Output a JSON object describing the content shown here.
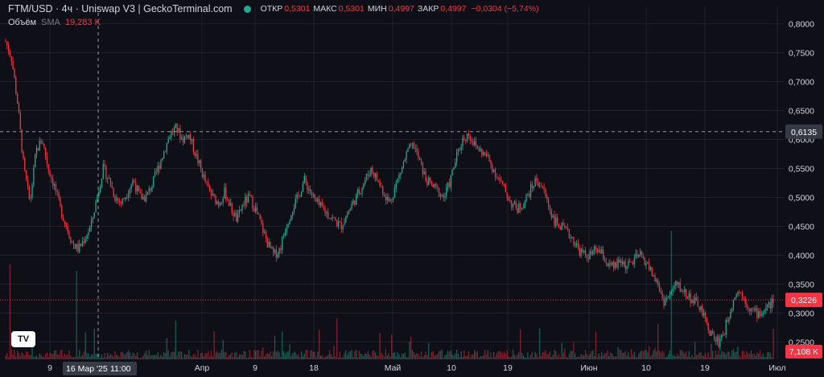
{
  "header": {
    "title": "FTM/USD · 4ч · Uniswap V3 | GeckoTerminal.com",
    "open_label": "ОТКР",
    "open": "0,5301",
    "high_label": "МАКС",
    "high": "0,5301",
    "low_label": "МИН",
    "low": "0,4997",
    "close_label": "ЗАКР",
    "close": "0,4997",
    "change": "−0,0304 (−5,74%)",
    "status_color": "#22ab94"
  },
  "volume_legend": {
    "label": "Объём",
    "type": "SMA",
    "value": "19,283 K"
  },
  "logo": {
    "text": "TV",
    "icon": "tradingview-logo-icon"
  },
  "colors": {
    "up": "#22ab94",
    "down": "#f23645",
    "background": "#0f0f17",
    "grid": "#1e222d"
  },
  "chart_data": {
    "type": "candlestick",
    "y_ticks": [
      "0,8000",
      "0,7500",
      "0,7000",
      "0,6500",
      "0,6000",
      "0,5500",
      "0,5000",
      "0,4500",
      "0,4000",
      "0,3500",
      "0,3000",
      "0,2500"
    ],
    "y_tick_values": [
      0.8,
      0.75,
      0.7,
      0.65,
      0.6,
      0.55,
      0.5,
      0.45,
      0.4,
      0.35,
      0.3,
      0.25
    ],
    "ylim": [
      0.22,
      0.83
    ],
    "x_ticks": [
      "9",
      "16 Мар '25",
      "11:00",
      "Апр",
      "9",
      "18",
      "Май",
      "10",
      "19",
      "Июн",
      "10",
      "19",
      "Июл"
    ],
    "crosshair": {
      "price": 0.6135,
      "price_label": "0,6135",
      "date_label": "16 Мар '25",
      "time_label": "11:00"
    },
    "last_price": {
      "value": 0.3226,
      "label": "0,3226"
    },
    "volume_last": "7,108 K",
    "price_path": [
      [
        0,
        0.77
      ],
      [
        1,
        0.74
      ],
      [
        2,
        0.66
      ],
      [
        3,
        0.55
      ],
      [
        4,
        0.49
      ],
      [
        5,
        0.58
      ],
      [
        6,
        0.6
      ],
      [
        7,
        0.55
      ],
      [
        8,
        0.52
      ],
      [
        9,
        0.48
      ],
      [
        10,
        0.45
      ],
      [
        11,
        0.42
      ],
      [
        12,
        0.41
      ],
      [
        13,
        0.43
      ],
      [
        14,
        0.45
      ],
      [
        15,
        0.5
      ],
      [
        16,
        0.55
      ],
      [
        17,
        0.53
      ],
      [
        18,
        0.5
      ],
      [
        19,
        0.49
      ],
      [
        20,
        0.51
      ],
      [
        21,
        0.53
      ],
      [
        22,
        0.5
      ],
      [
        23,
        0.5
      ],
      [
        24,
        0.52
      ],
      [
        25,
        0.55
      ],
      [
        26,
        0.58
      ],
      [
        27,
        0.61
      ],
      [
        28,
        0.62
      ],
      [
        29,
        0.6
      ],
      [
        30,
        0.61
      ],
      [
        31,
        0.58
      ],
      [
        32,
        0.55
      ],
      [
        33,
        0.52
      ],
      [
        34,
        0.5
      ],
      [
        35,
        0.49
      ],
      [
        36,
        0.51
      ],
      [
        37,
        0.48
      ],
      [
        38,
        0.46
      ],
      [
        39,
        0.49
      ],
      [
        40,
        0.5
      ],
      [
        41,
        0.48
      ],
      [
        42,
        0.45
      ],
      [
        43,
        0.42
      ],
      [
        44,
        0.4
      ],
      [
        45,
        0.41
      ],
      [
        46,
        0.45
      ],
      [
        47,
        0.48
      ],
      [
        48,
        0.5
      ],
      [
        49,
        0.53
      ],
      [
        50,
        0.51
      ],
      [
        51,
        0.49
      ],
      [
        52,
        0.48
      ],
      [
        53,
        0.47
      ],
      [
        54,
        0.46
      ],
      [
        55,
        0.45
      ],
      [
        56,
        0.47
      ],
      [
        57,
        0.49
      ],
      [
        58,
        0.51
      ],
      [
        59,
        0.53
      ],
      [
        60,
        0.55
      ],
      [
        61,
        0.53
      ],
      [
        62,
        0.51
      ],
      [
        63,
        0.49
      ],
      [
        64,
        0.52
      ],
      [
        65,
        0.55
      ],
      [
        66,
        0.58
      ],
      [
        67,
        0.59
      ],
      [
        68,
        0.56
      ],
      [
        69,
        0.53
      ],
      [
        70,
        0.52
      ],
      [
        71,
        0.51
      ],
      [
        72,
        0.5
      ],
      [
        73,
        0.53
      ],
      [
        74,
        0.57
      ],
      [
        75,
        0.6
      ],
      [
        76,
        0.61
      ],
      [
        77,
        0.59
      ],
      [
        78,
        0.58
      ],
      [
        79,
        0.57
      ],
      [
        80,
        0.55
      ],
      [
        81,
        0.53
      ],
      [
        82,
        0.51
      ],
      [
        83,
        0.49
      ],
      [
        84,
        0.48
      ],
      [
        85,
        0.49
      ],
      [
        86,
        0.51
      ],
      [
        87,
        0.53
      ],
      [
        88,
        0.52
      ],
      [
        89,
        0.49
      ],
      [
        90,
        0.46
      ],
      [
        91,
        0.45
      ],
      [
        92,
        0.44
      ],
      [
        93,
        0.43
      ],
      [
        94,
        0.41
      ],
      [
        95,
        0.4
      ],
      [
        96,
        0.4
      ],
      [
        97,
        0.41
      ],
      [
        98,
        0.4
      ],
      [
        99,
        0.38
      ],
      [
        100,
        0.38
      ],
      [
        101,
        0.39
      ],
      [
        102,
        0.38
      ],
      [
        103,
        0.39
      ],
      [
        104,
        0.4
      ],
      [
        105,
        0.39
      ],
      [
        106,
        0.37
      ],
      [
        107,
        0.35
      ],
      [
        108,
        0.32
      ],
      [
        109,
        0.33
      ],
      [
        110,
        0.35
      ],
      [
        111,
        0.34
      ],
      [
        112,
        0.33
      ],
      [
        113,
        0.32
      ],
      [
        114,
        0.31
      ],
      [
        115,
        0.28
      ],
      [
        116,
        0.26
      ],
      [
        117,
        0.25
      ],
      [
        118,
        0.27
      ],
      [
        119,
        0.31
      ],
      [
        120,
        0.34
      ],
      [
        121,
        0.33
      ],
      [
        122,
        0.31
      ],
      [
        123,
        0.3
      ],
      [
        124,
        0.3
      ],
      [
        125,
        0.31
      ],
      [
        126,
        0.32
      ]
    ]
  }
}
